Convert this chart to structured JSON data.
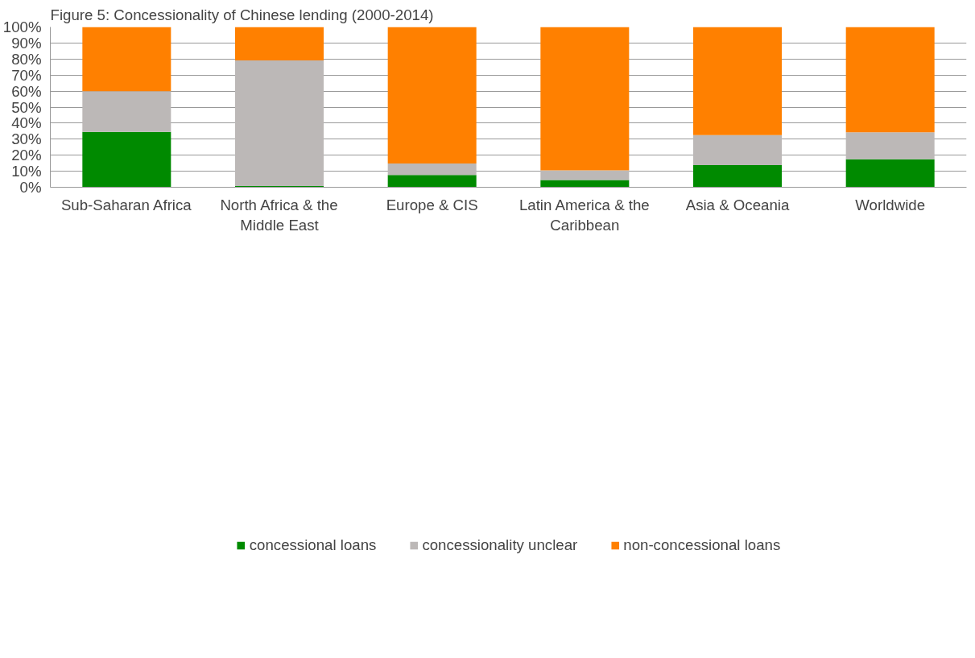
{
  "chart_data": {
    "type": "bar",
    "title": "Figure 5: Concessionality of Chinese lending (2000-2014)",
    "stacked": true,
    "categories": [
      "Sub-Saharan Africa",
      "North Africa & the Middle East",
      "Europe & CIS",
      "Latin America & the Caribbean",
      "Asia & Oceania",
      "Worldwide"
    ],
    "series": [
      {
        "name": "concessional loans",
        "color": "#008a00",
        "values": [
          34.6,
          0.8,
          7.7,
          4.5,
          13.8,
          17.4
        ]
      },
      {
        "name": "concessionality unclear",
        "color": "#bcb8b7",
        "values": [
          25.3,
          78.4,
          7.1,
          6.0,
          18.7,
          16.9
        ]
      },
      {
        "name": "non-concessional loans",
        "color": "#ff8000",
        "values": [
          40.1,
          20.8,
          85.2,
          89.5,
          67.5,
          65.7
        ]
      }
    ],
    "ylim": [
      0,
      100
    ],
    "yticks": [
      {
        "value": 0,
        "label": "0%"
      },
      {
        "value": 10,
        "label": "10%"
      },
      {
        "value": 20,
        "label": "20%"
      },
      {
        "value": 30,
        "label": "30%"
      },
      {
        "value": 40,
        "label": "40%"
      },
      {
        "value": 50,
        "label": "50%"
      },
      {
        "value": 60,
        "label": "60%"
      },
      {
        "value": 70,
        "label": "70%"
      },
      {
        "value": 80,
        "label": "80%"
      },
      {
        "value": 90,
        "label": "90%"
      },
      {
        "value": 100,
        "label": "100%"
      }
    ],
    "grid": "y",
    "legend": "bottom"
  }
}
